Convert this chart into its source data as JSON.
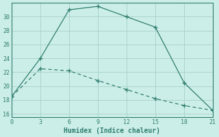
{
  "xlabel": "Humidex (Indice chaleur)",
  "bg_color": "#cceee8",
  "line_color": "#2e7d6e",
  "grid_color": "#aad4cc",
  "line1_x": [
    0,
    3,
    6,
    9,
    12,
    15,
    18,
    21
  ],
  "line1_y": [
    18.5,
    24,
    31,
    31.5,
    30,
    28.5,
    20.5,
    16.5
  ],
  "line2_x": [
    0,
    3,
    6,
    9,
    12,
    15,
    18,
    21
  ],
  "line2_y": [
    18.5,
    22.5,
    22.2,
    20.8,
    19.5,
    18.2,
    17.2,
    16.5
  ],
  "xlim": [
    0,
    21
  ],
  "ylim": [
    15.5,
    32
  ],
  "xticks": [
    0,
    3,
    6,
    9,
    12,
    15,
    18,
    21
  ],
  "yticks": [
    16,
    18,
    20,
    22,
    24,
    26,
    28,
    30
  ]
}
